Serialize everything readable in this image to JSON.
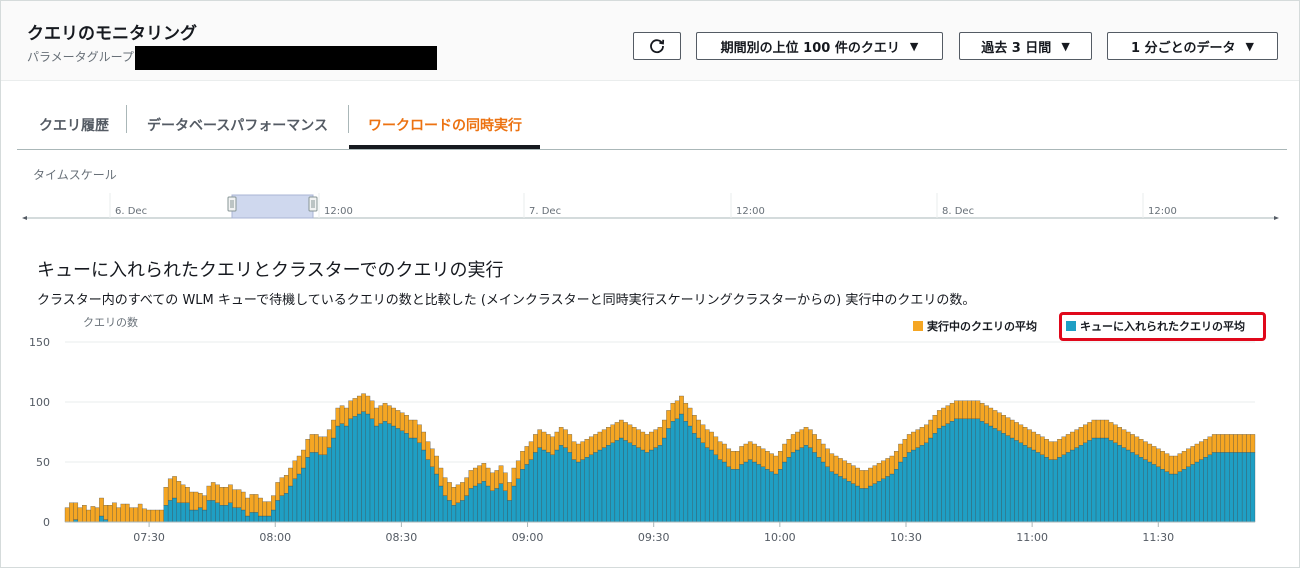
{
  "header": {
    "title": "クエリのモニタリング",
    "subtitle": "パラメータグループ:",
    "refresh_icon": "refresh-icon",
    "dropdown_top_queries": "期間別の上位 100 件のクエリ",
    "dropdown_period": "過去 3 日間",
    "dropdown_granularity": "1 分ごとのデータ",
    "caret": "▼"
  },
  "tabs": [
    {
      "label": "クエリ履歴"
    },
    {
      "label": "データベースパフォーマンス"
    },
    {
      "label": "ワークロードの同時実行",
      "active": true
    }
  ],
  "timescale": {
    "label": "タイムスケール",
    "ticks": [
      "6. Dec",
      "12:00",
      "7. Dec",
      "12:00",
      "8. Dec",
      "12:00"
    ]
  },
  "section": {
    "title": "キューに入れられたクエリとクラスターでのクエリの実行",
    "description": "クラスター内のすべての WLM キューで待機しているクエリの数と比較した (メインクラスターと同時実行スケーリングクラスターからの) 実行中のクエリの数。"
  },
  "colors": {
    "running": "#f5a623",
    "queued": "#1f9fc4",
    "accent": "#ec7211",
    "highlight": "#e0081b"
  },
  "chart_data": {
    "type": "bar",
    "stacked": true,
    "ylabel": "クエリの数",
    "ylim": [
      0,
      150
    ],
    "yticks": [
      0,
      50,
      100,
      150
    ],
    "xticks": [
      "07:30",
      "08:00",
      "08:30",
      "09:00",
      "09:30",
      "10:00",
      "10:30",
      "11:00",
      "11:30"
    ],
    "x_range_minutes": [
      430,
      713
    ],
    "legend_position": "top-right",
    "series": [
      {
        "name": "実行中のクエリの平均",
        "color": "#f5a623",
        "values": [
          12,
          16,
          14,
          12,
          14,
          10,
          13,
          12,
          15,
          12,
          14,
          16,
          12,
          15,
          15,
          12,
          12,
          15,
          11,
          10,
          10,
          10,
          10,
          15,
          18,
          18,
          18,
          15,
          13,
          15,
          15,
          12,
          12,
          12,
          15,
          15,
          15,
          15,
          15,
          15,
          15,
          15,
          15,
          15,
          15,
          15,
          12,
          12,
          12,
          15,
          15,
          15,
          15,
          15,
          15,
          15,
          15,
          15,
          15,
          15,
          15,
          15,
          15,
          15,
          15,
          15,
          15,
          15,
          15,
          15,
          15,
          15,
          15,
          15,
          15,
          15,
          15,
          15,
          15,
          15,
          15,
          15,
          15,
          15,
          15,
          15,
          15,
          15,
          15,
          15,
          15,
          15,
          15,
          15,
          15,
          15,
          15,
          15,
          15,
          15,
          15,
          15,
          15,
          15,
          15,
          15,
          15,
          15,
          15,
          15,
          15,
          15,
          15,
          15,
          15,
          15,
          15,
          15,
          15,
          15,
          15,
          15,
          15,
          15,
          15,
          15,
          15,
          15,
          15,
          15,
          15,
          15,
          15,
          15,
          15,
          15,
          15,
          15,
          15,
          15,
          15,
          15,
          15,
          15,
          15,
          15,
          15,
          15,
          15,
          15,
          15,
          15,
          15,
          15,
          15,
          15,
          15,
          15,
          15,
          15,
          15,
          15,
          15,
          15,
          15,
          15,
          15,
          15,
          15,
          15,
          15,
          15,
          15,
          15,
          15,
          15,
          15,
          15,
          15,
          15,
          15,
          15,
          15,
          15,
          15,
          15,
          15,
          15,
          15,
          15,
          15,
          15,
          15,
          15,
          15,
          15,
          15,
          15,
          15,
          15,
          15,
          15,
          15,
          15,
          15,
          15,
          15,
          15,
          15,
          15,
          15,
          15,
          15,
          15,
          15,
          15,
          15,
          15,
          15,
          15,
          15,
          15,
          15,
          15,
          15,
          15,
          15,
          15,
          15,
          15,
          15,
          15,
          15,
          15,
          15,
          15,
          15,
          15,
          15,
          15,
          15,
          15,
          15,
          15,
          15,
          15,
          15,
          15,
          15,
          15,
          15,
          15,
          15,
          15,
          15,
          15,
          15,
          15,
          15,
          15,
          15,
          15,
          15,
          15,
          15,
          15,
          15,
          15,
          15,
          15,
          15,
          15,
          15,
          15,
          15,
          15,
          15,
          15,
          15,
          15,
          15,
          15,
          15,
          15,
          15,
          15,
          15,
          15,
          15,
          15,
          15,
          15,
          15,
          15
        ]
      },
      {
        "name": "キューに入れられたクエリの平均",
        "color": "#1f9fc4",
        "values": [
          0,
          0,
          2,
          0,
          0,
          0,
          0,
          0,
          5,
          2,
          0,
          0,
          0,
          0,
          0,
          0,
          0,
          0,
          0,
          0,
          0,
          0,
          0,
          14,
          18,
          20,
          16,
          16,
          16,
          10,
          10,
          12,
          10,
          18,
          18,
          16,
          14,
          14,
          16,
          12,
          12,
          10,
          5,
          8,
          8,
          5,
          5,
          5,
          10,
          18,
          22,
          24,
          30,
          36,
          40,
          45,
          54,
          58,
          58,
          56,
          56,
          62,
          70,
          80,
          82,
          80,
          86,
          88,
          90,
          92,
          90,
          86,
          80,
          82,
          84,
          82,
          80,
          78,
          76,
          74,
          70,
          70,
          66,
          60,
          52,
          46,
          40,
          30,
          22,
          18,
          14,
          16,
          18,
          22,
          28,
          30,
          32,
          34,
          30,
          26,
          28,
          32,
          26,
          18,
          30,
          36,
          44,
          48,
          52,
          58,
          62,
          60,
          58,
          56,
          60,
          64,
          62,
          58,
          52,
          50,
          52,
          54,
          56,
          58,
          60,
          62,
          64,
          66,
          68,
          70,
          68,
          66,
          64,
          62,
          60,
          58,
          60,
          62,
          64,
          70,
          78,
          84,
          86,
          90,
          84,
          80,
          74,
          70,
          66,
          62,
          60,
          56,
          52,
          50,
          46,
          44,
          44,
          48,
          50,
          52,
          50,
          48,
          46,
          44,
          42,
          40,
          44,
          50,
          54,
          58,
          60,
          62,
          64,
          62,
          58,
          54,
          50,
          46,
          42,
          40,
          38,
          36,
          34,
          32,
          30,
          28,
          28,
          30,
          32,
          34,
          36,
          38,
          40,
          44,
          50,
          54,
          58,
          60,
          62,
          64,
          66,
          70,
          74,
          78,
          80,
          82,
          84,
          86,
          86,
          86,
          86,
          86,
          86,
          84,
          82,
          80,
          78,
          76,
          74,
          72,
          70,
          68,
          66,
          64,
          62,
          60,
          58,
          56,
          54,
          52,
          52,
          54,
          56,
          58,
          60,
          62,
          64,
          66,
          68,
          70,
          70,
          70,
          70,
          68,
          66,
          64,
          62,
          60,
          58,
          56,
          54,
          52,
          50,
          48,
          46,
          44,
          42,
          40,
          40,
          42,
          44,
          46,
          48,
          50,
          52,
          54,
          56,
          58,
          58,
          58,
          58,
          58,
          58,
          58,
          58,
          58,
          58
        ]
      }
    ]
  }
}
